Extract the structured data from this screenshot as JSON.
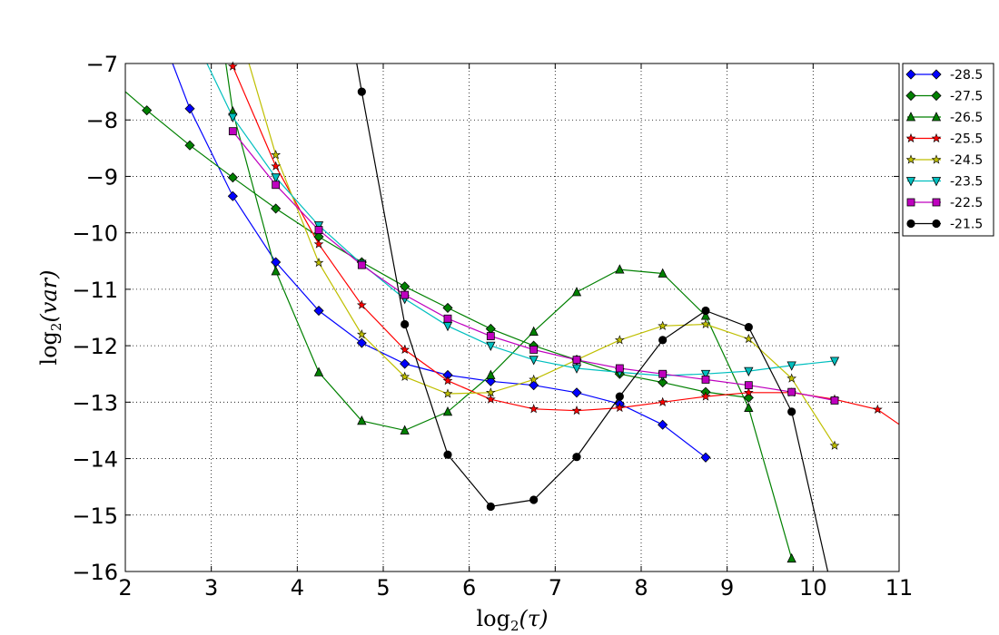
{
  "chart_data": {
    "type": "line",
    "title": "",
    "xlabel": "log",
    "xlabel_sub": "2",
    "xlabel_arg": "(τ)",
    "ylabel": "log",
    "ylabel_sub": "2",
    "ylabel_arg": "(var)",
    "xlim": [
      2,
      11
    ],
    "ylim": [
      -16,
      -7
    ],
    "xticks": [
      2,
      3,
      4,
      5,
      6,
      7,
      8,
      9,
      10,
      11
    ],
    "yticks": [
      -7,
      -8,
      -9,
      -10,
      -11,
      -12,
      -13,
      -14,
      -15,
      -16
    ],
    "grid": true,
    "legend_position": "outside-top-right",
    "series": [
      {
        "name": "-28.5",
        "color": "#0000ff",
        "marker": "diamond",
        "x": [
          2.75,
          3.25,
          3.75,
          4.25,
          4.75,
          5.25,
          5.75,
          6.25,
          6.75,
          7.25,
          7.75,
          8.25,
          8.75
        ],
        "y": [
          -7.8,
          -9.35,
          -10.52,
          -11.38,
          -11.95,
          -12.32,
          -12.52,
          -12.63,
          -12.7,
          -12.83,
          -13.03,
          -13.4,
          -13.98
        ],
        "extend_start": [
          2.5,
          -6.8
        ]
      },
      {
        "name": "-27.5",
        "color": "#008000",
        "marker": "diamond",
        "x": [
          2.25,
          2.75,
          3.25,
          3.75,
          4.25,
          4.75,
          5.25,
          5.75,
          6.25,
          6.75,
          7.25,
          7.75,
          8.25,
          8.75,
          9.25
        ],
        "y": [
          -7.83,
          -8.45,
          -9.02,
          -9.57,
          -10.07,
          -10.52,
          -10.95,
          -11.33,
          -11.7,
          -12.0,
          -12.25,
          -12.5,
          -12.65,
          -12.82,
          -12.92
        ],
        "extend_start": [
          2.0,
          -7.5
        ]
      },
      {
        "name": "-26.5",
        "color": "#008000",
        "marker": "triangle-up",
        "x": [
          3.25,
          3.75,
          4.25,
          4.75,
          5.25,
          5.75,
          6.25,
          6.75,
          7.25,
          7.75,
          8.25,
          8.75,
          9.25,
          9.75
        ],
        "y": [
          -7.85,
          -10.68,
          -12.47,
          -13.33,
          -13.5,
          -13.17,
          -12.52,
          -11.75,
          -11.05,
          -10.65,
          -10.72,
          -11.47,
          -13.1,
          -15.77
        ],
        "extend_start": [
          3.15,
          -6.8
        ]
      },
      {
        "name": "-25.5",
        "color": "#ff0000",
        "marker": "star",
        "x": [
          3.25,
          3.75,
          4.25,
          4.75,
          5.25,
          5.75,
          6.25,
          6.75,
          7.25,
          7.75,
          8.25,
          8.75,
          9.25,
          9.75,
          10.25,
          10.75
        ],
        "y": [
          -7.05,
          -8.82,
          -10.2,
          -11.28,
          -12.07,
          -12.62,
          -12.95,
          -13.12,
          -13.15,
          -13.1,
          -13.0,
          -12.9,
          -12.83,
          -12.83,
          -12.95,
          -13.13
        ],
        "extend_start": [
          3.2,
          -6.8
        ],
        "extend_end": [
          11.1,
          -13.5
        ]
      },
      {
        "name": "-24.5",
        "color": "#bfbf00",
        "marker": "star",
        "x": [
          3.75,
          4.25,
          4.75,
          5.25,
          5.75,
          6.25,
          6.75,
          7.25,
          7.75,
          8.25,
          8.75,
          9.25,
          9.75,
          10.25
        ],
        "y": [
          -8.62,
          -10.53,
          -11.8,
          -12.55,
          -12.85,
          -12.83,
          -12.6,
          -12.25,
          -11.9,
          -11.65,
          -11.62,
          -11.88,
          -12.58,
          -13.77
        ],
        "extend_start": [
          3.4,
          -6.8
        ]
      },
      {
        "name": "-23.5",
        "color": "#00bfbf",
        "marker": "triangle-down",
        "x": [
          3.25,
          3.75,
          4.25,
          4.75,
          5.25,
          5.75,
          6.25,
          6.75,
          7.25,
          7.75,
          8.25,
          8.75,
          9.25,
          9.75,
          10.25
        ],
        "y": [
          -7.95,
          -9.02,
          -9.87,
          -10.55,
          -11.17,
          -11.65,
          -12.0,
          -12.25,
          -12.4,
          -12.47,
          -12.53,
          -12.5,
          -12.45,
          -12.35,
          -12.27
        ],
        "extend_start": [
          2.95,
          -7.0
        ]
      },
      {
        "name": "-22.5",
        "color": "#bf00bf",
        "marker": "square",
        "x": [
          3.25,
          3.75,
          4.25,
          4.75,
          5.25,
          5.75,
          6.25,
          6.75,
          7.25,
          7.75,
          8.25,
          8.75,
          9.25,
          9.75,
          10.25
        ],
        "y": [
          -8.2,
          -9.15,
          -9.95,
          -10.57,
          -11.1,
          -11.52,
          -11.83,
          -12.07,
          -12.25,
          -12.4,
          -12.5,
          -12.6,
          -12.7,
          -12.82,
          -12.97
        ]
      },
      {
        "name": "-21.5",
        "color": "#000000",
        "marker": "circle",
        "x": [
          4.75,
          5.25,
          5.75,
          6.25,
          6.75,
          7.25,
          7.75,
          8.25,
          8.75,
          9.25,
          9.75
        ],
        "y": [
          -7.5,
          -11.62,
          -13.93,
          -14.85,
          -14.73,
          -13.97,
          -12.9,
          -11.9,
          -11.38,
          -11.67,
          -13.17
        ],
        "extend_start": [
          4.68,
          -6.9
        ],
        "extend_end": [
          10.2,
          -16.2
        ]
      }
    ]
  }
}
